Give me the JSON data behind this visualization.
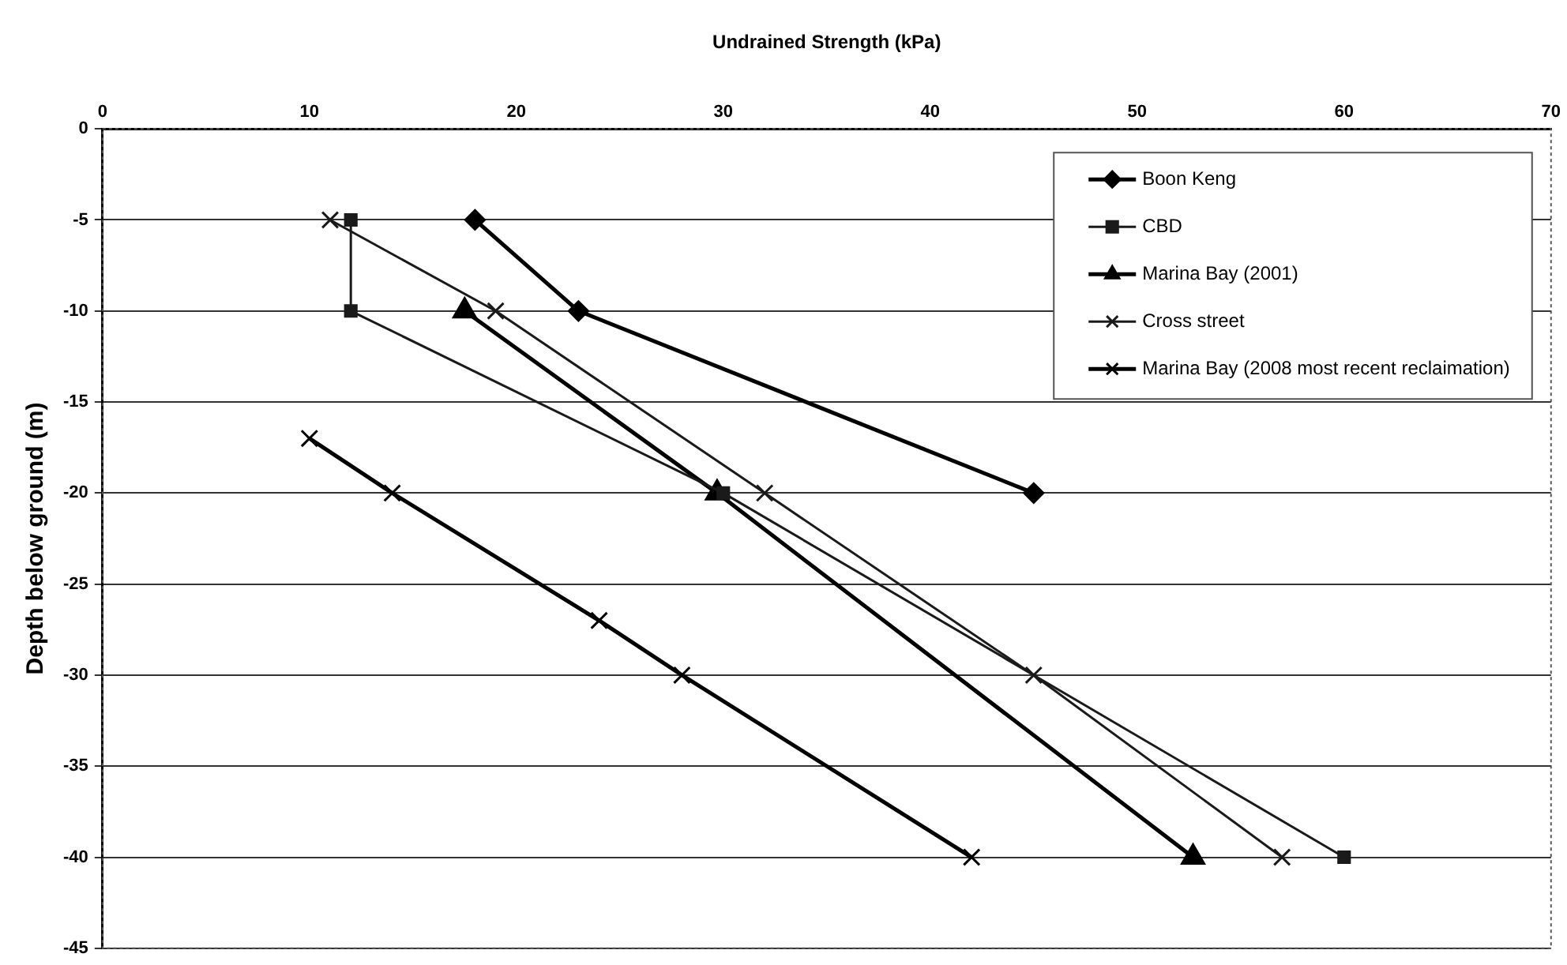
{
  "chart_data": {
    "type": "scatter",
    "xlabel": "Undrained Strength (kPa)",
    "ylabel": "Depth below ground (m)",
    "xlim": [
      0,
      70
    ],
    "xticks": [
      0,
      10,
      20,
      30,
      40,
      50,
      60,
      70
    ],
    "ylim": [
      -45,
      0
    ],
    "yticks": [
      0,
      -5,
      -10,
      -15,
      -20,
      -25,
      -30,
      -35,
      -40,
      -45
    ],
    "grid": "y",
    "legend": "top right",
    "line_style": "solid",
    "series": [
      {
        "name": "Boon Keng",
        "type": "line",
        "marker": "diamond",
        "color": "#000000",
        "x": [
          18,
          23,
          45
        ],
        "values": [
          -5,
          -10,
          -20
        ]
      },
      {
        "name": "CBD",
        "type": "line",
        "marker": "square",
        "color": "#1a1a1a",
        "x": [
          12,
          12,
          30,
          60
        ],
        "values": [
          -5,
          -10,
          -20,
          -40
        ]
      },
      {
        "name": "Marina Bay (2001)",
        "type": "line",
        "marker": "triangle",
        "color": "#000000",
        "x": [
          17.5,
          29.7,
          52.7
        ],
        "values": [
          -10,
          -20,
          -40
        ]
      },
      {
        "name": "Cross street",
        "type": "line",
        "marker": "cross",
        "color": "#1a1a1a",
        "x": [
          11,
          19,
          32,
          45,
          57
        ],
        "values": [
          -5,
          -10,
          -20,
          -30,
          -40
        ]
      },
      {
        "name": "Marina Bay (2008 most recent reclaimation)",
        "type": "line",
        "marker": "cross",
        "color": "#000000",
        "x": [
          10,
          14,
          24,
          28,
          42
        ],
        "values": [
          -17,
          -20,
          -27,
          -30,
          -40
        ]
      }
    ]
  }
}
